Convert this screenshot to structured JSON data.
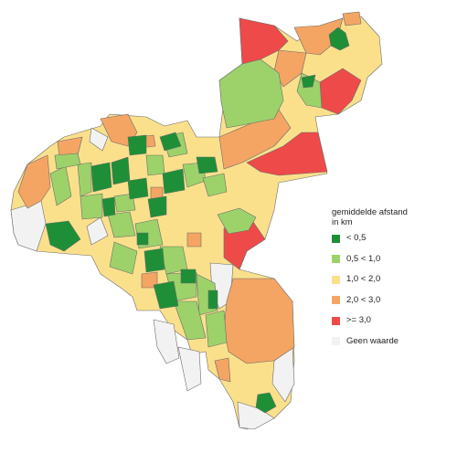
{
  "legend": {
    "title_line1": "gemiddelde afstand",
    "title_line2": "in km",
    "items": [
      {
        "label": "< 0,5",
        "color": "#1e8f36"
      },
      {
        "label": "0,5 < 1,0",
        "color": "#9dd26a"
      },
      {
        "label": "1,0 < 2,0",
        "color": "#fbe08c"
      },
      {
        "label": "2,0 < 3,0",
        "color": "#f4a563"
      },
      {
        "label": ">= 3,0",
        "color": "#ef4a4a"
      },
      {
        "label": "Geen waarde",
        "color": "#f2f2f2"
      }
    ]
  }
}
